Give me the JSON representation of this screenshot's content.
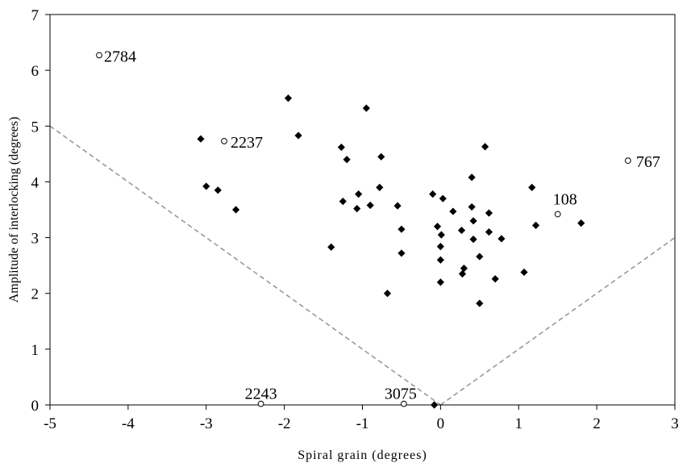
{
  "chart_data": {
    "type": "scatter",
    "title": "",
    "xlabel": "Spiral grain (degrees)",
    "ylabel": "Amplitude of interlocking (degrees)",
    "xlim": [
      -5,
      3
    ],
    "ylim": [
      0,
      7
    ],
    "xticks": [
      -5,
      -4,
      -3,
      -2,
      -1,
      0,
      1,
      2,
      3
    ],
    "yticks": [
      0,
      1,
      2,
      3,
      4,
      5,
      6,
      7
    ],
    "grid": false,
    "legend": "none",
    "colors": {
      "filled": "#000000",
      "open": "#ffffff",
      "boundary": "#999999"
    },
    "series": [
      {
        "marker": "filled-diamond",
        "points": [
          [
            -1.95,
            5.5
          ],
          [
            -0.95,
            5.32
          ],
          [
            -1.82,
            4.83
          ],
          [
            -3.07,
            4.77
          ],
          [
            -1.27,
            4.62
          ],
          [
            -1.2,
            4.4
          ],
          [
            -0.76,
            4.45
          ],
          [
            0.57,
            4.63
          ],
          [
            -3.0,
            3.92
          ],
          [
            -2.85,
            3.85
          ],
          [
            -1.25,
            3.65
          ],
          [
            -1.07,
            3.52
          ],
          [
            -1.05,
            3.78
          ],
          [
            -0.9,
            3.58
          ],
          [
            -0.78,
            3.9
          ],
          [
            -2.62,
            3.5
          ],
          [
            -0.55,
            3.57
          ],
          [
            -0.1,
            3.78
          ],
          [
            0.03,
            3.7
          ],
          [
            0.4,
            4.08
          ],
          [
            1.17,
            3.9
          ],
          [
            0.4,
            3.55
          ],
          [
            0.16,
            3.47
          ],
          [
            0.62,
            3.44
          ],
          [
            0.42,
            3.3
          ],
          [
            -0.04,
            3.2
          ],
          [
            0.27,
            3.13
          ],
          [
            0.62,
            3.1
          ],
          [
            0.01,
            3.05
          ],
          [
            0.78,
            2.98
          ],
          [
            -0.5,
            3.15
          ],
          [
            0.42,
            2.97
          ],
          [
            1.22,
            3.22
          ],
          [
            1.8,
            3.26
          ],
          [
            -1.4,
            2.83
          ],
          [
            0.0,
            2.84
          ],
          [
            -0.5,
            2.72
          ],
          [
            0.5,
            2.66
          ],
          [
            0.0,
            2.6
          ],
          [
            0.3,
            2.45
          ],
          [
            0.28,
            2.35
          ],
          [
            1.07,
            2.38
          ],
          [
            0.7,
            2.26
          ],
          [
            0.0,
            2.2
          ],
          [
            -0.68,
            2.0
          ],
          [
            0.5,
            1.82
          ],
          [
            -0.08,
            0.0
          ]
        ]
      },
      {
        "marker": "open-circle",
        "points": [
          {
            "x": -4.37,
            "y": 6.27,
            "label": "2784"
          },
          {
            "x": -2.77,
            "y": 4.73,
            "label": "2237"
          },
          {
            "x": 2.4,
            "y": 4.38,
            "label": "767"
          },
          {
            "x": 1.5,
            "y": 3.42,
            "label": "108"
          },
          {
            "x": -2.3,
            "y": 0.02,
            "label": "2243"
          },
          {
            "x": -0.47,
            "y": 0.02,
            "label": "3075"
          }
        ]
      }
    ],
    "boundary_lines": [
      {
        "x": [
          -5,
          0
        ],
        "y": [
          5,
          0
        ],
        "style": "dashed"
      },
      {
        "x": [
          0,
          3
        ],
        "y": [
          0,
          3
        ],
        "style": "dashed"
      }
    ]
  }
}
